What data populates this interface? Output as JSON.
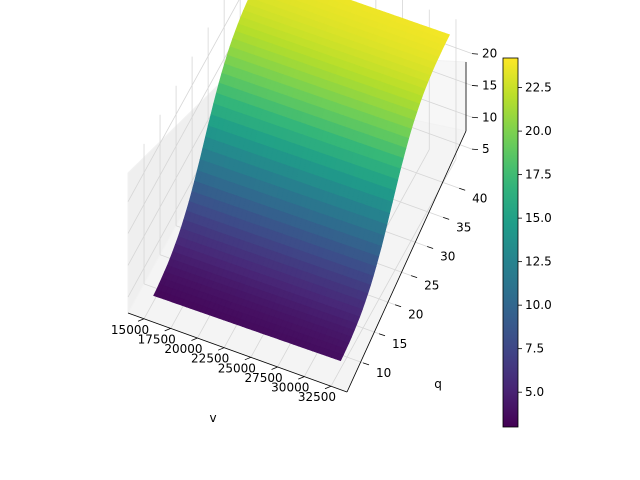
{
  "chart_data": {
    "type": "surface3d",
    "title": "",
    "xlabel": "v",
    "ylabel": "q",
    "zlabel": "",
    "xlim": [
      13500,
      34000
    ],
    "ylim": [
      5,
      44
    ],
    "zlim": [
      2.5,
      24.5
    ],
    "x_ticks": [
      15000,
      17500,
      20000,
      22500,
      25000,
      27500,
      30000,
      32500
    ],
    "x_tick_labels": [
      "15000",
      "17500",
      "20000",
      "22500",
      "25000",
      "27500",
      "30000",
      "32500"
    ],
    "y_ticks": [
      10,
      15,
      20,
      25,
      30,
      35,
      40
    ],
    "y_tick_labels": [
      "10",
      "15",
      "20",
      "25",
      "30",
      "35",
      "40"
    ],
    "z_ticks": [
      5,
      10,
      15,
      20
    ],
    "z_tick_labels": [
      "5",
      "10",
      "15",
      "20"
    ],
    "x_range": [
      15000,
      32500
    ],
    "y_range": [
      8,
      42
    ],
    "surface": {
      "description_of_shape": "z rises with q as a sigmoid; nearly flat along v",
      "z_min": 3.0,
      "z_max": 24.1,
      "q_center": 24,
      "q_scale": 4.5,
      "v_slope_per_1000": 0.02
    },
    "colormap": "viridis",
    "colorbar": {
      "ticks": [
        5.0,
        7.5,
        10.0,
        12.5,
        15.0,
        17.5,
        20.0,
        22.5
      ],
      "tick_labels": [
        "5.0",
        "7.5",
        "10.0",
        "12.5",
        "15.0",
        "17.5",
        "20.0",
        "22.5"
      ],
      "range": [
        3.0,
        24.2
      ]
    },
    "grid": true
  }
}
